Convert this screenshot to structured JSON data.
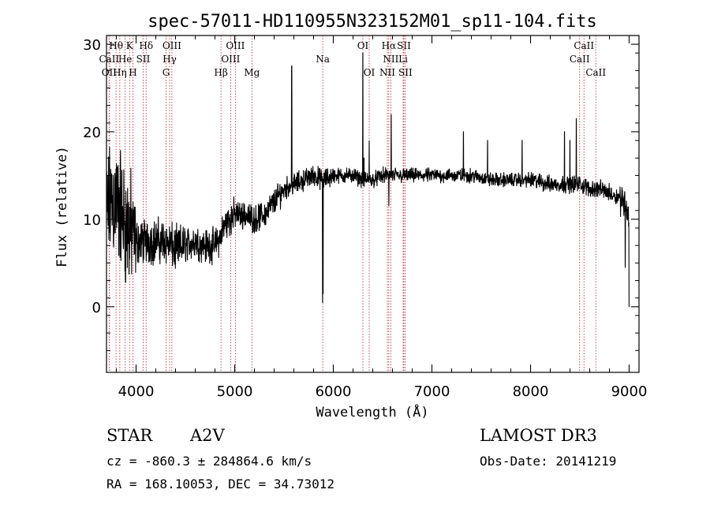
{
  "chart_data": {
    "type": "line",
    "title": "spec-57011-HD110955N323152M01_sp11-104.fits",
    "xlabel": "Wavelength (Å)",
    "ylabel": "Flux (relative)",
    "xlim": [
      3700,
      9100
    ],
    "ylim": [
      -7.5,
      31
    ],
    "x_ticks": [
      4000,
      5000,
      6000,
      7000,
      8000,
      9000
    ],
    "y_ticks": [
      0,
      10,
      20,
      30
    ],
    "line_color": "#000000",
    "marker_color": "#b22222",
    "grid": false,
    "series": [
      {
        "anchors": [
          [
            3700,
            10
          ],
          [
            3740,
            12
          ],
          [
            3800,
            12
          ],
          [
            3850,
            11
          ],
          [
            3900,
            9
          ],
          [
            3950,
            8.5
          ],
          [
            4000,
            7.5
          ],
          [
            4100,
            7.5
          ],
          [
            4200,
            7.5
          ],
          [
            4300,
            7.5
          ],
          [
            4400,
            6.5
          ],
          [
            4500,
            7
          ],
          [
            4600,
            7.5
          ],
          [
            4700,
            7
          ],
          [
            4800,
            7
          ],
          [
            4860,
            8
          ],
          [
            4900,
            9.5
          ],
          [
            5000,
            10.5
          ],
          [
            5100,
            10.5
          ],
          [
            5200,
            10
          ],
          [
            5300,
            10.5
          ],
          [
            5400,
            12
          ],
          [
            5500,
            13.5
          ],
          [
            5600,
            14
          ],
          [
            5700,
            14.5
          ],
          [
            5800,
            15
          ],
          [
            5900,
            14.5
          ],
          [
            6000,
            15
          ],
          [
            6100,
            15
          ],
          [
            6200,
            15
          ],
          [
            6300,
            14.5
          ],
          [
            6400,
            14.5
          ],
          [
            6500,
            15
          ],
          [
            6600,
            15
          ],
          [
            6700,
            15
          ],
          [
            6800,
            15
          ],
          [
            7000,
            15
          ],
          [
            7200,
            15
          ],
          [
            7400,
            15
          ],
          [
            7600,
            14.5
          ],
          [
            7800,
            14.5
          ],
          [
            8000,
            14.5
          ],
          [
            8200,
            14
          ],
          [
            8400,
            14
          ],
          [
            8500,
            14
          ],
          [
            8600,
            13.5
          ],
          [
            8700,
            13.5
          ],
          [
            8800,
            13
          ],
          [
            8900,
            12.5
          ],
          [
            8960,
            12
          ],
          [
            9000,
            10
          ]
        ],
        "features": [
          [
            5578,
            27.5
          ],
          [
            5892,
            0.5
          ],
          [
            5897,
            1.5
          ],
          [
            6300,
            29
          ],
          [
            6310,
            17
          ],
          [
            6364,
            19
          ],
          [
            6563,
            11.5
          ],
          [
            6587,
            22
          ],
          [
            7320,
            20
          ],
          [
            7565,
            19
          ],
          [
            7915,
            19
          ],
          [
            8345,
            20
          ],
          [
            8400,
            19
          ],
          [
            8465,
            21.5
          ],
          [
            8960,
            4.5
          ],
          [
            9000,
            0
          ]
        ]
      }
    ],
    "spectral_lines": [
      {
        "label": "Hθ",
        "wavelength": 3797,
        "row": 0
      },
      {
        "label": "K",
        "wavelength": 3934,
        "row": 0
      },
      {
        "label": "Hδ",
        "wavelength": 4102,
        "row": 0
      },
      {
        "label": "OIII",
        "wavelength": 4363,
        "row": 0
      },
      {
        "label": "OIII",
        "wavelength": 5007,
        "row": 0
      },
      {
        "label": "OI",
        "wavelength": 6300,
        "row": 0
      },
      {
        "label": "Hα",
        "wavelength": 6563,
        "row": 0
      },
      {
        "label": "SII",
        "wavelength": 6716,
        "row": 0
      },
      {
        "label": "CaII",
        "wavelength": 8542,
        "row": 0
      },
      {
        "label": "CaII",
        "wavelength": 3727,
        "row": 1
      },
      {
        "label": "He",
        "wavelength": 3889,
        "row": 1
      },
      {
        "label": "SII",
        "wavelength": 4072,
        "row": 1
      },
      {
        "label": "Hγ",
        "wavelength": 4340,
        "row": 1
      },
      {
        "label": "OIII",
        "wavelength": 4959,
        "row": 1
      },
      {
        "label": "Na",
        "wavelength": 5893,
        "row": 1
      },
      {
        "label": "NII",
        "wavelength": 6583,
        "row": 1
      },
      {
        "label": "Li",
        "wavelength": 6708,
        "row": 1
      },
      {
        "label": "CaII",
        "wavelength": 8498,
        "row": 1
      },
      {
        "label": "OII",
        "wavelength": 3727,
        "row": 2
      },
      {
        "label": "Hη",
        "wavelength": 3835,
        "row": 2
      },
      {
        "label": "H",
        "wavelength": 3968,
        "row": 2
      },
      {
        "label": "G",
        "wavelength": 4304,
        "row": 2
      },
      {
        "label": "Hβ",
        "wavelength": 4861,
        "row": 2
      },
      {
        "label": "Mg",
        "wavelength": 5175,
        "row": 2
      },
      {
        "label": "OI",
        "wavelength": 6364,
        "row": 2
      },
      {
        "label": "NII",
        "wavelength": 6548,
        "row": 2
      },
      {
        "label": "SII",
        "wavelength": 6731,
        "row": 2
      },
      {
        "label": "CaII",
        "wavelength": 8662,
        "row": 2
      }
    ]
  },
  "info": {
    "object_class": "STAR",
    "subclass": "A2V",
    "survey": "LAMOST DR3",
    "cz": "cz = -860.3 ± 284864.6 km/s",
    "obs_date": "Obs-Date: 20141219",
    "coords": "RA = 168.10053, DEC =  34.73012"
  }
}
